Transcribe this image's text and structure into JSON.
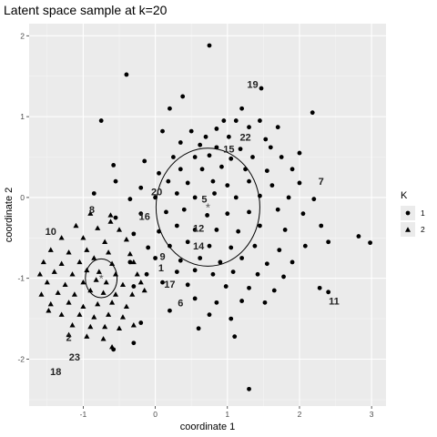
{
  "chart_data": {
    "type": "scatter",
    "title": "Latent space sample at k=20",
    "xlabel": "coordinate 1",
    "ylabel": "coordinate 2",
    "xlim": [
      -1.75,
      3.2
    ],
    "ylim": [
      -2.58,
      2.15
    ],
    "xticks": [
      -1,
      0,
      1,
      2,
      3
    ],
    "yticks": [
      -2,
      -1,
      0,
      1,
      2
    ],
    "grid": true,
    "legend": {
      "title": "K",
      "position": "right",
      "entries": [
        {
          "label": "1",
          "shape": "circle"
        },
        {
          "label": "2",
          "shape": "triangle"
        }
      ]
    },
    "ellipses": [
      {
        "cluster": "1",
        "cx": 0.73,
        "cy": -0.12,
        "rx": 0.72,
        "ry": 0.73
      },
      {
        "cluster": "2",
        "cx": -0.75,
        "cy": -1.0,
        "rx": 0.22,
        "ry": 0.24
      }
    ],
    "centroids": [
      {
        "cluster": "1",
        "x": 0.73,
        "y": -0.12
      },
      {
        "cluster": "2",
        "x": -0.75,
        "y": -1.0
      }
    ],
    "annotations": [
      {
        "text": "19",
        "x": 1.35,
        "y": 1.4
      },
      {
        "text": "22",
        "x": 1.25,
        "y": 0.75
      },
      {
        "text": "15",
        "x": 1.02,
        "y": 0.6
      },
      {
        "text": "7",
        "x": 2.3,
        "y": 0.2
      },
      {
        "text": "20",
        "x": 0.02,
        "y": 0.07
      },
      {
        "text": "5",
        "x": 0.68,
        "y": -0.02
      },
      {
        "text": "8",
        "x": -0.88,
        "y": -0.15
      },
      {
        "text": "16",
        "x": -0.15,
        "y": -0.23
      },
      {
        "text": "12",
        "x": 0.6,
        "y": -0.38
      },
      {
        "text": "10",
        "x": -1.45,
        "y": -0.42
      },
      {
        "text": "14",
        "x": 0.6,
        "y": -0.6
      },
      {
        "text": "9",
        "x": 0.1,
        "y": -0.73
      },
      {
        "text": "1",
        "x": 0.08,
        "y": -0.87
      },
      {
        "text": "17",
        "x": 0.2,
        "y": -1.07
      },
      {
        "text": "11",
        "x": 2.48,
        "y": -1.28
      },
      {
        "text": "6",
        "x": 0.35,
        "y": -1.3
      },
      {
        "text": "2",
        "x": -1.2,
        "y": -1.73
      },
      {
        "text": "23",
        "x": -1.12,
        "y": -1.97
      },
      {
        "text": "18",
        "x": -1.38,
        "y": -2.15
      }
    ],
    "series": [
      {
        "name": "1",
        "shape": "circle",
        "points": [
          [
            0.75,
            1.88
          ],
          [
            -0.4,
            1.52
          ],
          [
            1.47,
            1.35
          ],
          [
            0.38,
            1.25
          ],
          [
            0.2,
            1.1
          ],
          [
            1.2,
            1.1
          ],
          [
            2.18,
            1.05
          ],
          [
            -0.75,
            0.95
          ],
          [
            0.95,
            0.95
          ],
          [
            1.12,
            0.95
          ],
          [
            1.45,
            0.95
          ],
          [
            0.1,
            0.82
          ],
          [
            0.5,
            0.82
          ],
          [
            0.85,
            0.85
          ],
          [
            1.3,
            0.87
          ],
          [
            1.7,
            0.87
          ],
          [
            0.7,
            0.75
          ],
          [
            1.02,
            0.75
          ],
          [
            1.53,
            0.72
          ],
          [
            0.35,
            0.68
          ],
          [
            0.62,
            0.65
          ],
          [
            0.85,
            0.62
          ],
          [
            1.18,
            0.6
          ],
          [
            1.6,
            0.62
          ],
          [
            -0.58,
            0.4
          ],
          [
            -0.15,
            0.45
          ],
          [
            0.25,
            0.5
          ],
          [
            0.55,
            0.5
          ],
          [
            0.75,
            0.52
          ],
          [
            1.05,
            0.48
          ],
          [
            1.35,
            0.5
          ],
          [
            1.75,
            0.5
          ],
          [
            2.0,
            0.55
          ],
          [
            -0.55,
            0.2
          ],
          [
            0.05,
            0.3
          ],
          [
            0.35,
            0.35
          ],
          [
            0.65,
            0.35
          ],
          [
            0.92,
            0.38
          ],
          [
            1.25,
            0.35
          ],
          [
            1.55,
            0.33
          ],
          [
            1.9,
            0.35
          ],
          [
            -0.2,
            0.12
          ],
          [
            0.18,
            0.2
          ],
          [
            0.45,
            0.18
          ],
          [
            0.8,
            0.2
          ],
          [
            1.0,
            0.15
          ],
          [
            1.3,
            0.2
          ],
          [
            1.62,
            0.15
          ],
          [
            2.0,
            0.18
          ],
          [
            -0.85,
            0.05
          ],
          [
            -0.35,
            -0.02
          ],
          [
            0.0,
            0.0
          ],
          [
            0.3,
            0.05
          ],
          [
            0.55,
            0.0
          ],
          [
            0.82,
            0.05
          ],
          [
            1.12,
            0.0
          ],
          [
            1.45,
            0.02
          ],
          [
            1.85,
            0.0
          ],
          [
            2.2,
            -0.02
          ],
          [
            -0.55,
            -0.25
          ],
          [
            -0.2,
            -0.2
          ],
          [
            0.15,
            -0.18
          ],
          [
            0.4,
            -0.15
          ],
          [
            0.72,
            -0.22
          ],
          [
            1.0,
            -0.2
          ],
          [
            1.3,
            -0.18
          ],
          [
            1.7,
            -0.15
          ],
          [
            2.05,
            -0.2
          ],
          [
            -0.3,
            -0.45
          ],
          [
            0.05,
            -0.42
          ],
          [
            0.3,
            -0.35
          ],
          [
            0.55,
            -0.4
          ],
          [
            0.85,
            -0.4
          ],
          [
            1.15,
            -0.42
          ],
          [
            1.45,
            -0.35
          ],
          [
            1.8,
            -0.4
          ],
          [
            2.3,
            -0.35
          ],
          [
            2.82,
            -0.48
          ],
          [
            -0.1,
            -0.62
          ],
          [
            0.2,
            -0.6
          ],
          [
            0.45,
            -0.55
          ],
          [
            0.75,
            -0.6
          ],
          [
            1.05,
            -0.62
          ],
          [
            1.38,
            -0.6
          ],
          [
            1.72,
            -0.65
          ],
          [
            2.08,
            -0.6
          ],
          [
            2.4,
            -0.55
          ],
          [
            2.98,
            -0.56
          ],
          [
            -0.35,
            -0.8
          ],
          [
            0.0,
            -0.75
          ],
          [
            0.35,
            -0.78
          ],
          [
            0.62,
            -0.75
          ],
          [
            0.9,
            -0.8
          ],
          [
            1.2,
            -0.75
          ],
          [
            1.55,
            -0.82
          ],
          [
            1.9,
            -0.8
          ],
          [
            -0.12,
            -0.95
          ],
          [
            0.3,
            -0.92
          ],
          [
            0.55,
            -0.9
          ],
          [
            0.8,
            -0.95
          ],
          [
            1.08,
            -0.92
          ],
          [
            1.42,
            -0.95
          ],
          [
            1.78,
            -0.98
          ],
          [
            -0.3,
            -1.1
          ],
          [
            0.1,
            -1.05
          ],
          [
            0.45,
            -1.08
          ],
          [
            0.98,
            -1.1
          ],
          [
            1.3,
            -1.12
          ],
          [
            1.65,
            -1.15
          ],
          [
            2.28,
            -1.12
          ],
          [
            2.4,
            -1.17
          ],
          [
            0.55,
            -1.25
          ],
          [
            0.85,
            -1.3
          ],
          [
            1.2,
            -1.28
          ],
          [
            1.52,
            -1.3
          ],
          [
            0.2,
            -1.4
          ],
          [
            0.75,
            -1.45
          ],
          [
            1.05,
            -1.5
          ],
          [
            -0.2,
            -1.55
          ],
          [
            0.6,
            -1.62
          ],
          [
            1.1,
            -1.72
          ],
          [
            -0.3,
            -1.8
          ],
          [
            -0.58,
            -1.88
          ],
          [
            1.3,
            -2.37
          ]
        ]
      },
      {
        "name": "2",
        "shape": "triangle",
        "points": [
          [
            -0.9,
            -0.2
          ],
          [
            -0.62,
            -0.22
          ],
          [
            -1.1,
            -0.35
          ],
          [
            -0.8,
            -0.38
          ],
          [
            -0.5,
            -0.4
          ],
          [
            -1.3,
            -0.5
          ],
          [
            -1.0,
            -0.5
          ],
          [
            -0.7,
            -0.55
          ],
          [
            -0.4,
            -0.52
          ],
          [
            -1.45,
            -0.65
          ],
          [
            -1.2,
            -0.68
          ],
          [
            -0.95,
            -0.65
          ],
          [
            -0.65,
            -0.68
          ],
          [
            -0.35,
            -0.7
          ],
          [
            -1.55,
            -0.8
          ],
          [
            -1.3,
            -0.82
          ],
          [
            -1.05,
            -0.8
          ],
          [
            -0.85,
            -0.75
          ],
          [
            -0.6,
            -0.82
          ],
          [
            -0.3,
            -0.8
          ],
          [
            -1.6,
            -0.95
          ],
          [
            -1.4,
            -0.92
          ],
          [
            -1.15,
            -0.95
          ],
          [
            -0.95,
            -0.9
          ],
          [
            -0.78,
            -0.92
          ],
          [
            -0.55,
            -0.95
          ],
          [
            -0.25,
            -0.95
          ],
          [
            -1.5,
            -1.05
          ],
          [
            -1.25,
            -1.08
          ],
          [
            -1.0,
            -1.05
          ],
          [
            -0.82,
            -1.02
          ],
          [
            -0.68,
            -1.05
          ],
          [
            -0.45,
            -1.08
          ],
          [
            -0.2,
            -1.05
          ],
          [
            -1.58,
            -1.2
          ],
          [
            -1.35,
            -1.18
          ],
          [
            -1.12,
            -1.2
          ],
          [
            -0.9,
            -1.15
          ],
          [
            -0.72,
            -1.18
          ],
          [
            -0.55,
            -1.2
          ],
          [
            -0.32,
            -1.2
          ],
          [
            -1.45,
            -1.32
          ],
          [
            -1.2,
            -1.3
          ],
          [
            -1.0,
            -1.35
          ],
          [
            -0.8,
            -1.32
          ],
          [
            -0.6,
            -1.3
          ],
          [
            -0.4,
            -1.35
          ],
          [
            -1.3,
            -1.45
          ],
          [
            -1.05,
            -1.45
          ],
          [
            -0.85,
            -1.48
          ],
          [
            -0.65,
            -1.45
          ],
          [
            -0.45,
            -1.48
          ],
          [
            -1.15,
            -1.58
          ],
          [
            -0.9,
            -1.6
          ],
          [
            -0.7,
            -1.6
          ],
          [
            -0.5,
            -1.62
          ],
          [
            -0.3,
            -1.58
          ],
          [
            -0.95,
            -1.72
          ],
          [
            -0.72,
            -1.75
          ],
          [
            -1.2,
            -1.7
          ],
          [
            -0.6,
            -1.85
          ],
          [
            -1.48,
            -1.4
          ],
          [
            -0.15,
            -1.15
          ],
          [
            -0.62,
            -0.3
          ]
        ]
      }
    ]
  }
}
